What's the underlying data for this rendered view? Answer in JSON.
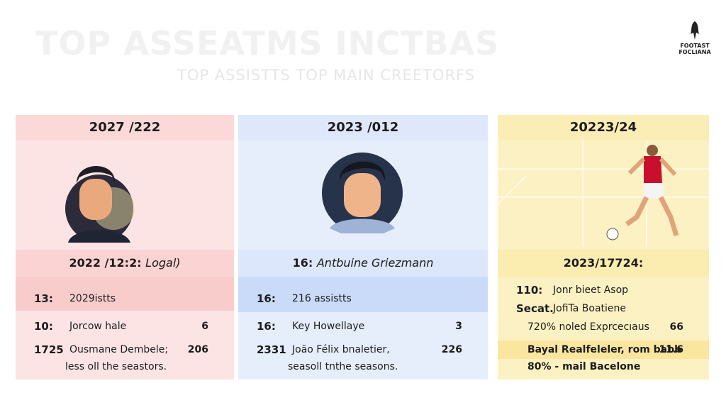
{
  "header": {
    "title": "TOP ASSEATMS INCTBAS",
    "subtitle": "TOP ASSISTTS TOP MAIN CREETORFS",
    "logo": [
      "FOOTAST",
      "FOCLIANA"
    ]
  },
  "cards": [
    {
      "title": "2027 /222",
      "caption": {
        "lead": "2022 /12:2:",
        "name": "Logal)"
      },
      "rows": [
        {
          "label": "13:",
          "text": "2029istts"
        },
        {
          "label": "10:",
          "text": "Jorcow hale",
          "value": "6"
        },
        {
          "label": "1725",
          "text": "Ousmane Dembele;",
          "value": "206"
        },
        {
          "text": "less oll the seastors."
        }
      ]
    },
    {
      "title": "2023 /012",
      "caption": {
        "lead": "16:",
        "name": "Antbuine Griezmann"
      },
      "rows": [
        {
          "label": "16:",
          "text": "216 assistts"
        },
        {
          "label": "16:",
          "text": "Key Howellaye",
          "value": "3"
        },
        {
          "label": "2331",
          "text": "João Félix bnaletier,",
          "value": "226"
        },
        {
          "text": "seasoll tnthe seasons."
        }
      ]
    },
    {
      "title": "20223/24",
      "caption": {
        "lead": "2023/17724:"
      },
      "rows": [
        {
          "label": "110:",
          "text": "Jonr bieet Asop"
        },
        {
          "label": "Secat.",
          "text": "JofiTa Boatiene"
        },
        {
          "text": "720% noled Exprcecıaus",
          "value": "66"
        },
        {
          "text": "Bayal Realfeleler, rom babb",
          "value": "11.6"
        },
        {
          "text": "80% -  mail Bacelone"
        }
      ]
    }
  ]
}
